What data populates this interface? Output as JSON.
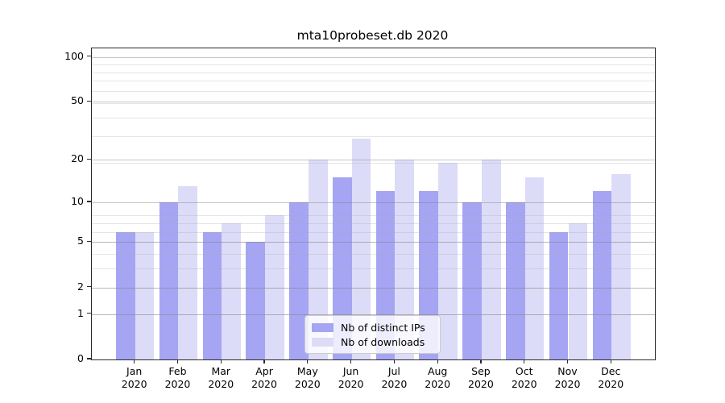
{
  "chart_data": {
    "type": "bar",
    "title": "mta10probeset.db 2020",
    "categories": [
      "Jan",
      "Feb",
      "Mar",
      "Apr",
      "May",
      "Jun",
      "Jul",
      "Aug",
      "Sep",
      "Oct",
      "Nov",
      "Dec"
    ],
    "year": "2020",
    "series": [
      {
        "name": "Nb of distinct IPs",
        "color": "#a5a5f3",
        "values": [
          6,
          10,
          6,
          5,
          10,
          15,
          12,
          12,
          10,
          10,
          6,
          12
        ]
      },
      {
        "name": "Nb of downloads",
        "color": "#dcdcf8",
        "values": [
          6,
          13,
          7,
          8,
          20,
          28,
          20,
          19,
          20,
          15,
          7,
          16
        ]
      }
    ],
    "xlabel": "",
    "ylabel": "",
    "yscale": "log1p",
    "ylim": [
      0,
      114
    ],
    "ytick_values": [
      100,
      50,
      20,
      10,
      5,
      2,
      1,
      0
    ],
    "ytick_labels": [
      "100",
      "50",
      "20",
      "10",
      "5",
      "2",
      "1",
      "0"
    ],
    "minor_grid_values": [
      1,
      2,
      3,
      4,
      5,
      6,
      7,
      8,
      19,
      29,
      39,
      49,
      59,
      69,
      79,
      89
    ],
    "grid": true,
    "legend_position": "lower center"
  },
  "colors": {
    "spine": "#2a2a2a",
    "major_grid": "#c7c7c7",
    "minor_grid": "#e6e6e6",
    "legend_border": "#cccccc"
  }
}
